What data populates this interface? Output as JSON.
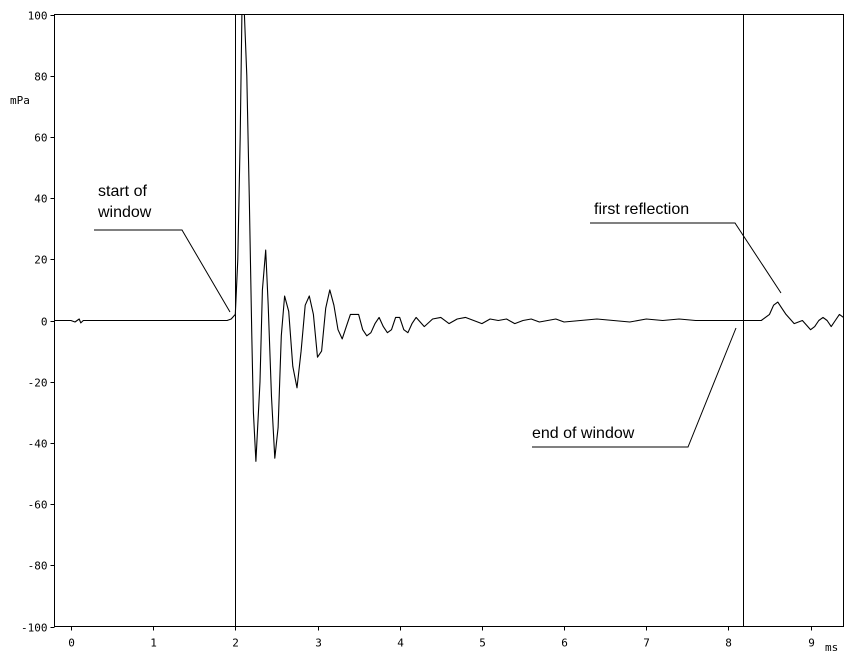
{
  "chart_data": {
    "type": "line",
    "title": "",
    "xlabel": "ms",
    "ylabel": "mPa",
    "xlim": [
      -0.2,
      9.4
    ],
    "ylim": [
      -100,
      100
    ],
    "x_ticks": [
      0,
      1,
      2,
      3,
      4,
      5,
      6,
      7,
      8,
      9
    ],
    "y_ticks": [
      100,
      80,
      60,
      40,
      20,
      0,
      -20,
      -40,
      -60,
      -80,
      -100
    ],
    "grid": false,
    "vertical_lines": [
      2.0,
      8.18
    ],
    "series": [
      {
        "name": "",
        "x": [
          -0.2,
          0.0,
          0.05,
          0.1,
          0.12,
          0.15,
          0.5,
          1.0,
          1.5,
          1.9,
          1.95,
          2.0,
          2.03,
          2.06,
          2.08,
          2.11,
          2.14,
          2.17,
          2.2,
          2.22,
          2.25,
          2.3,
          2.33,
          2.37,
          2.4,
          2.44,
          2.48,
          2.52,
          2.56,
          2.6,
          2.65,
          2.7,
          2.75,
          2.8,
          2.85,
          2.9,
          2.95,
          3.0,
          3.05,
          3.1,
          3.15,
          3.2,
          3.25,
          3.3,
          3.35,
          3.4,
          3.5,
          3.55,
          3.6,
          3.65,
          3.7,
          3.75,
          3.8,
          3.85,
          3.9,
          3.95,
          4.0,
          4.05,
          4.1,
          4.15,
          4.2,
          4.3,
          4.4,
          4.5,
          4.6,
          4.7,
          4.8,
          4.9,
          5.0,
          5.1,
          5.2,
          5.3,
          5.4,
          5.5,
          5.6,
          5.7,
          5.8,
          5.9,
          6.0,
          6.2,
          6.4,
          6.6,
          6.8,
          7.0,
          7.2,
          7.4,
          7.6,
          7.8,
          8.0,
          8.18,
          8.4,
          8.5,
          8.55,
          8.6,
          8.65,
          8.7,
          8.75,
          8.8,
          8.9,
          9.0,
          9.05,
          9.1,
          9.15,
          9.2,
          9.25,
          9.3,
          9.35,
          9.4
        ],
        "y": [
          0,
          0,
          -0.5,
          0.5,
          -0.8,
          0,
          0,
          0,
          0,
          0,
          0.5,
          2,
          20,
          60,
          100,
          100,
          80,
          40,
          -5,
          -30,
          -46,
          -20,
          10,
          23,
          5,
          -25,
          -45,
          -35,
          -5,
          8,
          3,
          -15,
          -22,
          -10,
          5,
          8,
          2,
          -12,
          -10,
          4,
          10,
          5,
          -3,
          -6,
          -2,
          2,
          2,
          -3,
          -5,
          -4,
          -1,
          1,
          -2,
          -4,
          -3,
          1,
          1,
          -3,
          -4,
          -1,
          1,
          -2,
          0.5,
          1,
          -1,
          0.5,
          1,
          0,
          -1,
          0.5,
          0,
          0.5,
          -1,
          0,
          0.5,
          -0.5,
          0,
          0.5,
          -0.5,
          0,
          0.5,
          0,
          -0.5,
          0.5,
          0,
          0.5,
          0,
          0,
          0,
          0,
          0,
          2,
          5,
          6,
          4,
          2,
          0.5,
          -1,
          0,
          -3,
          -2,
          0,
          1,
          0,
          -2,
          0,
          2,
          1
        ]
      }
    ],
    "annotations": [
      {
        "lines": [
          "start of",
          "window"
        ]
      },
      {
        "lines": [
          "first reflection"
        ]
      },
      {
        "lines": [
          "end of window"
        ]
      }
    ]
  }
}
